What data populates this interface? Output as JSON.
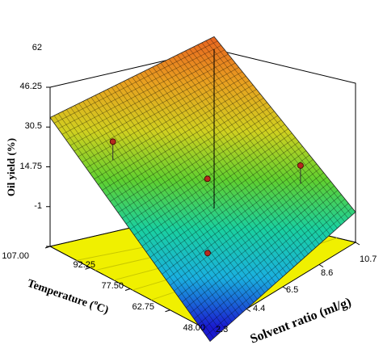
{
  "chart_data": {
    "type": "surface3d",
    "title": "",
    "zlabel": "Oil yield (%)",
    "xlabel_main": "Temperature (",
    "xlabel_sup": "o",
    "xlabel_end": "C)",
    "ylabel": "Solvent ratio (ml/g)",
    "z_ticks": [
      "62",
      "46.25",
      "30.5",
      "14.75",
      "-1"
    ],
    "temperature_ticks": [
      "107.00",
      "92.25",
      "77.50",
      "62.75",
      "48.00"
    ],
    "solvent_ticks": [
      "2.3",
      "4.4",
      "6.5",
      "8.6",
      "10.7"
    ],
    "zlim": [
      -1,
      62
    ],
    "temperature_range": [
      48,
      107
    ],
    "solvent_ratio_range": [
      2.3,
      10.7
    ],
    "surface_corners": [
      {
        "temperature": 107.0,
        "solvent_ratio": 2.3,
        "oil_yield": 50.0
      },
      {
        "temperature": 107.0,
        "solvent_ratio": 10.7,
        "oil_yield": 67.0
      },
      {
        "temperature": 48.0,
        "solvent_ratio": 2.3,
        "oil_yield": -5.0
      },
      {
        "temperature": 48.0,
        "solvent_ratio": 10.7,
        "oil_yield": 11.0
      }
    ],
    "design_points": [
      {
        "temperature": 92.25,
        "solvent_ratio": 3.5,
        "oil_yield": 46.0
      },
      {
        "temperature": 77.5,
        "solvent_ratio": 6.5,
        "oil_yield": 30.0
      },
      {
        "temperature": 62.75,
        "solvent_ratio": 9.6,
        "oil_yield": 30.0
      },
      {
        "temperature": 62.75,
        "solvent_ratio": 4.4,
        "oil_yield": 14.0
      }
    ],
    "colors": {
      "floor": "#f0f000",
      "floor_lines": "#c8c800",
      "point": "#b42a1e",
      "gradient": [
        "#1a1ad0",
        "#1ab0e0",
        "#1ad0a0",
        "#60d030",
        "#d0d020",
        "#e8a020",
        "#e86020"
      ]
    }
  }
}
